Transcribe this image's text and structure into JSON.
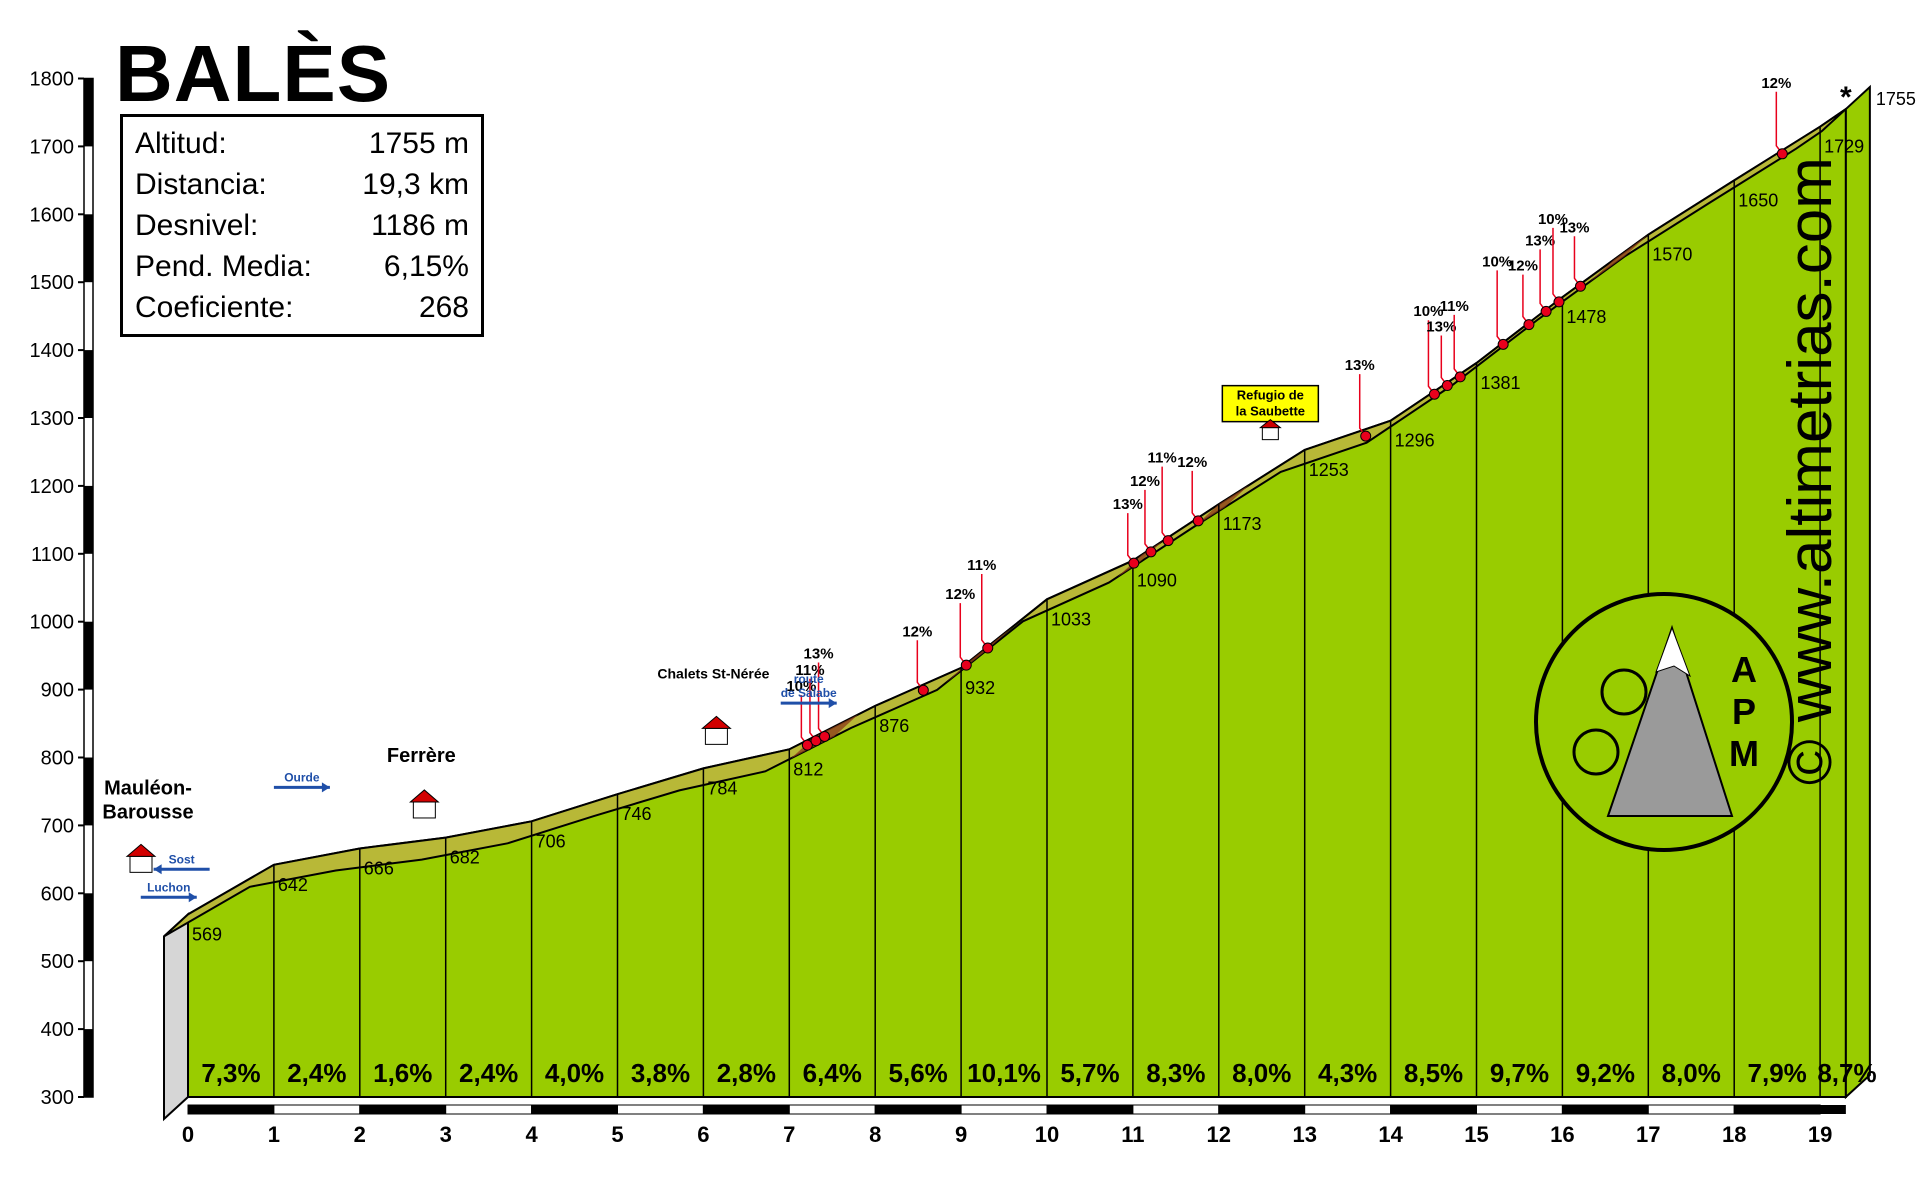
{
  "title": "BALÈS",
  "info": {
    "rows": [
      {
        "label": "Altitud:",
        "value": "1755 m"
      },
      {
        "label": "Distancia:",
        "value": "19,3 km"
      },
      {
        "label": "Desnivel:",
        "value": "1186 m"
      },
      {
        "label": "Pend. Media:",
        "value": "6,15%"
      },
      {
        "label": "Coeficiente:",
        "value": "268"
      }
    ]
  },
  "brand": "© www.altimetrias.com",
  "logo_text": "APM",
  "colors": {
    "fill": "#99cc00",
    "road": "#b8b837",
    "road_light": "#f0f040",
    "steep": "#8b3a1a",
    "marker": "#e8001c",
    "sign": "#ffff00"
  },
  "chart_data": {
    "type": "area",
    "x_unit": "km",
    "y_unit": "m",
    "ylim": [
      300,
      1800
    ],
    "xlim": [
      0,
      19.3
    ],
    "y_ticks": [
      300,
      400,
      500,
      600,
      700,
      800,
      900,
      1000,
      1100,
      1200,
      1300,
      1400,
      1500,
      1600,
      1700,
      1800
    ],
    "x_ticks": [
      0,
      1,
      2,
      3,
      4,
      5,
      6,
      7,
      8,
      9,
      10,
      11,
      12,
      13,
      14,
      15,
      16,
      17,
      18,
      19
    ],
    "profile": [
      [
        0,
        569
      ],
      [
        1,
        642
      ],
      [
        2,
        666
      ],
      [
        3,
        682
      ],
      [
        4,
        706
      ],
      [
        5,
        746
      ],
      [
        6,
        784
      ],
      [
        7,
        812
      ],
      [
        8,
        876
      ],
      [
        9,
        932
      ],
      [
        10,
        1033
      ],
      [
        11,
        1090
      ],
      [
        12,
        1173
      ],
      [
        13,
        1253
      ],
      [
        14,
        1296
      ],
      [
        15,
        1381
      ],
      [
        16,
        1478
      ],
      [
        17,
        1570
      ],
      [
        18,
        1650
      ],
      [
        19,
        1729
      ],
      [
        19.3,
        1755
      ]
    ],
    "km_altitude_labels": [
      "569",
      "642",
      "666",
      "682",
      "706",
      "746",
      "784",
      "812",
      "876",
      "932",
      "1033",
      "1090",
      "1173",
      "1253",
      "1296",
      "1381",
      "1478",
      "1570",
      "1650",
      "1729"
    ],
    "end_label": "1755",
    "segment_gradients": [
      "7,3%",
      "2,4%",
      "1,6%",
      "2,4%",
      "4,0%",
      "3,8%",
      "2,8%",
      "6,4%",
      "5,6%",
      "10,1%",
      "5,7%",
      "8,3%",
      "8,0%",
      "4,3%",
      "8,5%",
      "9,7%",
      "9,2%",
      "8,0%",
      "7,9%",
      "8,7%"
    ],
    "steep_markers": [
      {
        "km": 7.35,
        "label": "10%"
      },
      {
        "km": 7.45,
        "label": "11%"
      },
      {
        "km": 7.55,
        "label": "13%"
      },
      {
        "km": 8.7,
        "label": "12%"
      },
      {
        "km": 9.2,
        "label": "12%"
      },
      {
        "km": 9.45,
        "label": "11%"
      },
      {
        "km": 11.15,
        "label": "13%"
      },
      {
        "km": 11.35,
        "label": "12%"
      },
      {
        "km": 11.55,
        "label": "11%"
      },
      {
        "km": 11.9,
        "label": "12%"
      },
      {
        "km": 13.85,
        "label": "13%"
      },
      {
        "km": 14.65,
        "label": "10%"
      },
      {
        "km": 14.8,
        "label": "13%"
      },
      {
        "km": 14.95,
        "label": "11%"
      },
      {
        "km": 15.45,
        "label": "10%"
      },
      {
        "km": 15.75,
        "label": "12%"
      },
      {
        "km": 15.95,
        "label": "13%"
      },
      {
        "km": 16.1,
        "label": "10%"
      },
      {
        "km": 16.35,
        "label": "13%"
      },
      {
        "km": 18.7,
        "label": "12%"
      }
    ],
    "places": [
      {
        "km": 0,
        "label_lines": [
          "Mauléon-",
          "Barousse"
        ]
      },
      {
        "km": 2.6,
        "label_lines": [
          "Ferrère"
        ]
      },
      {
        "km": 6.0,
        "label_lines": [
          "Chalets St-Nérée"
        ]
      },
      {
        "km": 12.6,
        "label_lines": [
          "Refugio de",
          "la Saubette"
        ]
      }
    ],
    "junctions": [
      {
        "km": -0.4,
        "label_lines": [
          "Sost"
        ],
        "arrow": "left"
      },
      {
        "km": -0.4,
        "label_lines": [
          "Luchon"
        ],
        "arrow": "right"
      },
      {
        "km": 1.35,
        "label_lines": [
          "Ourde"
        ],
        "arrow": "right"
      },
      {
        "km": 7.2,
        "label_lines": [
          "route",
          "de Salabe"
        ],
        "arrow": "right"
      }
    ]
  }
}
